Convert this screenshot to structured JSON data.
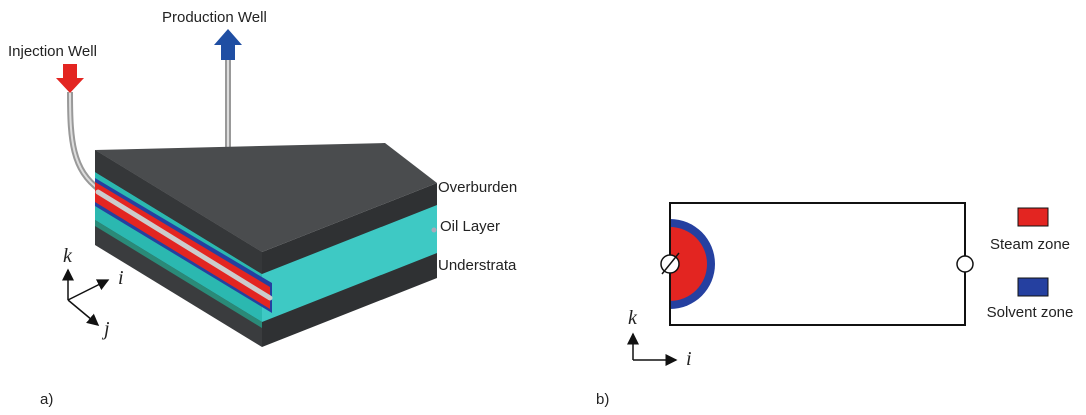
{
  "panel_a": {
    "label": "a)",
    "wells": {
      "injection": "Injection Well",
      "production": "Production Well"
    },
    "layers": [
      "Overburden",
      "Oil Layer",
      "Understrata"
    ],
    "axes": {
      "k": "k",
      "i": "i",
      "j": "j"
    }
  },
  "panel_b": {
    "label": "b)",
    "legend": [
      "Steam zone",
      "Solvent zone"
    ],
    "axes": {
      "k": "k",
      "i": "i"
    }
  }
}
